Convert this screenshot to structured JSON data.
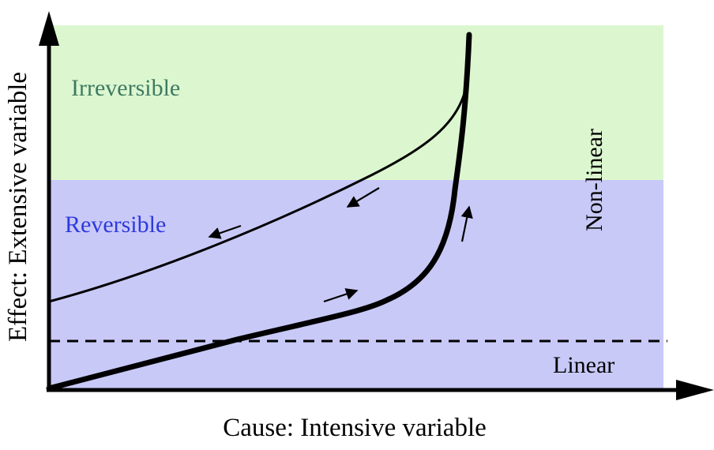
{
  "diagram": {
    "regions": {
      "irreversible_label": "Irreversible",
      "reversible_label": "Reversible",
      "nonlinear_label": "Non-linear",
      "linear_label": "Linear"
    },
    "axes": {
      "x_label": "Cause: Intensive variable",
      "y_label": "Effect: Extensive variable"
    },
    "colors": {
      "irreversible_region": "#dcf7d0",
      "reversible_region": "#c8c9f7",
      "irreversible_text": "#3f7a62",
      "reversible_text": "#2f39dd",
      "ink": "#000000"
    }
  }
}
